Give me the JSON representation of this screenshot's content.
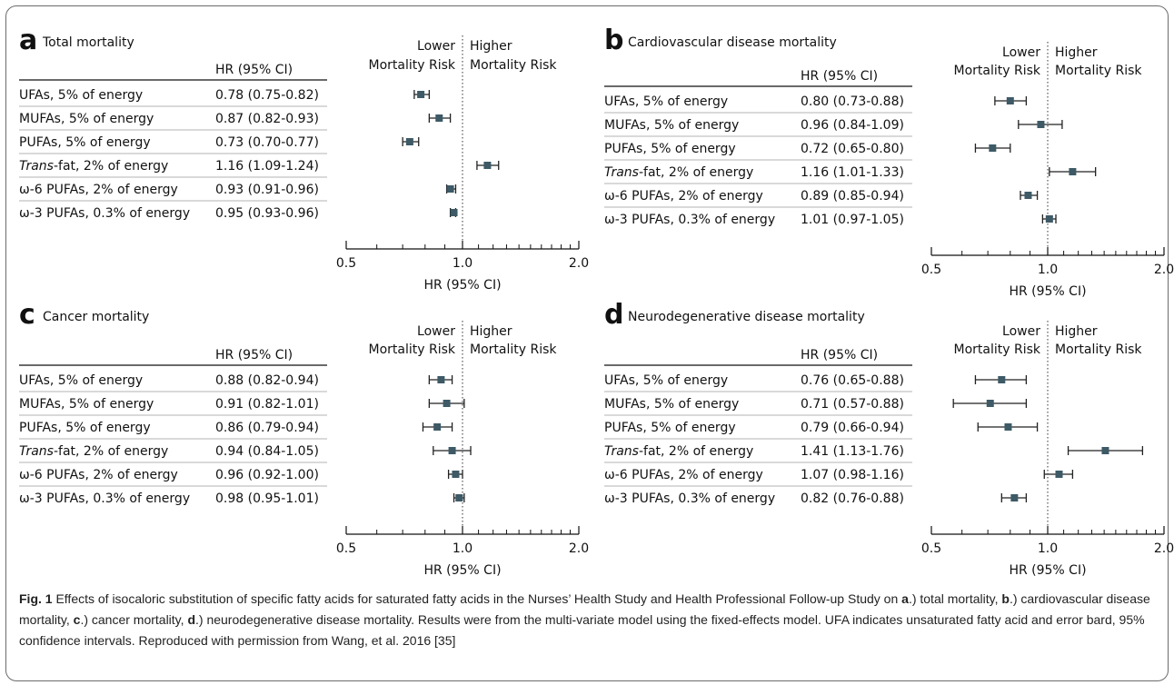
{
  "chart_data": [
    {
      "type": "forest",
      "letter": "a",
      "title": "Total mortality",
      "column_header": "HR (95% CI)",
      "lower_label": [
        "Lower",
        "Mortality Risk"
      ],
      "higher_label": [
        "Higher",
        "Mortality Risk"
      ],
      "xlabel": "HR (95% CI)",
      "x_scale": "log",
      "xlim": [
        0.5,
        2.0
      ],
      "ticks": [
        "0.5",
        "1.0",
        "2.0"
      ],
      "reference_line": 1.0,
      "rows": [
        {
          "label": "UFAs, 5% of energy",
          "hr_text": "0.78 (0.75-0.82)",
          "hr": 0.78,
          "lo": 0.75,
          "hi": 0.82
        },
        {
          "label": "MUFAs, 5% of energy",
          "hr_text": "0.87 (0.82-0.93)",
          "hr": 0.87,
          "lo": 0.82,
          "hi": 0.93
        },
        {
          "label": "PUFAs, 5% of energy",
          "hr_text": "0.73 (0.70-0.77)",
          "hr": 0.73,
          "lo": 0.7,
          "hi": 0.77
        },
        {
          "label_italic": "Trans",
          "label": "-fat, 2% of energy",
          "hr_text": "1.16 (1.09-1.24)",
          "hr": 1.16,
          "lo": 1.09,
          "hi": 1.24
        },
        {
          "label": "ω-6 PUFAs, 2% of energy",
          "hr_text": "0.93 (0.91-0.96)",
          "hr": 0.93,
          "lo": 0.91,
          "hi": 0.96
        },
        {
          "label": "ω-3 PUFAs, 0.3% of energy",
          "hr_text": "0.95 (0.93-0.96)",
          "hr": 0.95,
          "lo": 0.93,
          "hi": 0.96
        }
      ]
    },
    {
      "type": "forest",
      "letter": "b",
      "title": "Cardiovascular disease mortality",
      "column_header": "HR (95% CI)",
      "lower_label": [
        "Lower",
        "Mortality Risk"
      ],
      "higher_label": [
        "Higher",
        "Mortality Risk"
      ],
      "xlabel": "HR (95% CI)",
      "x_scale": "log",
      "xlim": [
        0.5,
        2.0
      ],
      "ticks": [
        "0.5",
        "1.0",
        "2.0"
      ],
      "reference_line": 1.0,
      "rows": [
        {
          "label": "UFAs, 5% of energy",
          "hr_text": "0.80 (0.73-0.88)",
          "hr": 0.8,
          "lo": 0.73,
          "hi": 0.88
        },
        {
          "label": "MUFAs, 5% of energy",
          "hr_text": "0.96 (0.84-1.09)",
          "hr": 0.96,
          "lo": 0.84,
          "hi": 1.09
        },
        {
          "label": "PUFAs, 5% of energy",
          "hr_text": "0.72 (0.65-0.80)",
          "hr": 0.72,
          "lo": 0.65,
          "hi": 0.8
        },
        {
          "label_italic": "Trans",
          "label": "-fat, 2% of energy",
          "hr_text": "1.16 (1.01-1.33)",
          "hr": 1.16,
          "lo": 1.01,
          "hi": 1.33
        },
        {
          "label": "ω-6 PUFAs, 2% of energy",
          "hr_text": "0.89 (0.85-0.94)",
          "hr": 0.89,
          "lo": 0.85,
          "hi": 0.94
        },
        {
          "label": "ω-3 PUFAs, 0.3% of energy",
          "hr_text": "1.01 (0.97-1.05)",
          "hr": 1.01,
          "lo": 0.97,
          "hi": 1.05
        }
      ]
    },
    {
      "type": "forest",
      "letter": "c",
      "title": "Cancer mortality",
      "column_header": "HR (95% CI)",
      "lower_label": [
        "Lower",
        "Mortality Risk"
      ],
      "higher_label": [
        "Higher",
        "Mortality Risk"
      ],
      "xlabel": "HR (95% CI)",
      "x_scale": "log",
      "xlim": [
        0.5,
        2.0
      ],
      "ticks": [
        "0.5",
        "1.0",
        "2.0"
      ],
      "reference_line": 1.0,
      "rows": [
        {
          "label": "UFAs, 5% of energy",
          "hr_text": "0.88 (0.82-0.94)",
          "hr": 0.88,
          "lo": 0.82,
          "hi": 0.94
        },
        {
          "label": "MUFAs, 5% of energy",
          "hr_text": "0.91 (0.82-1.01)",
          "hr": 0.91,
          "lo": 0.82,
          "hi": 1.01
        },
        {
          "label": "PUFAs, 5% of energy",
          "hr_text": "0.86 (0.79-0.94)",
          "hr": 0.86,
          "lo": 0.79,
          "hi": 0.94
        },
        {
          "label_italic": "Trans",
          "label": "-fat, 2% of energy",
          "hr_text": "0.94 (0.84-1.05)",
          "hr": 0.94,
          "lo": 0.84,
          "hi": 1.05
        },
        {
          "label": "ω-6 PUFAs, 2% of energy",
          "hr_text": "0.96 (0.92-1.00)",
          "hr": 0.96,
          "lo": 0.92,
          "hi": 1.0
        },
        {
          "label": "ω-3 PUFAs, 0.3% of energy",
          "hr_text": "0.98 (0.95-1.01)",
          "hr": 0.98,
          "lo": 0.95,
          "hi": 1.01
        }
      ]
    },
    {
      "type": "forest",
      "letter": "d",
      "title": "Neurodegenerative disease mortality",
      "column_header": "HR (95% CI)",
      "lower_label": [
        "Lower",
        "Mortality Risk"
      ],
      "higher_label": [
        "Higher",
        "Mortality Risk"
      ],
      "xlabel": "HR (95% CI)",
      "x_scale": "log",
      "xlim": [
        0.5,
        2.0
      ],
      "ticks": [
        "0.5",
        "1.0",
        "2.0"
      ],
      "reference_line": 1.0,
      "rows": [
        {
          "label": "UFAs, 5% of energy",
          "hr_text": "0.76 (0.65-0.88)",
          "hr": 0.76,
          "lo": 0.65,
          "hi": 0.88
        },
        {
          "label": "MUFAs, 5% of energy",
          "hr_text": "0.71 (0.57-0.88)",
          "hr": 0.71,
          "lo": 0.57,
          "hi": 0.88
        },
        {
          "label": "PUFAs, 5% of energy",
          "hr_text": "0.79 (0.66-0.94)",
          "hr": 0.79,
          "lo": 0.66,
          "hi": 0.94
        },
        {
          "label_italic": "Trans",
          "label": "-fat, 2% of energy",
          "hr_text": "1.41 (1.13-1.76)",
          "hr": 1.41,
          "lo": 1.13,
          "hi": 1.76
        },
        {
          "label": "ω-6 PUFAs, 2% of energy",
          "hr_text": "1.07 (0.98-1.16)",
          "hr": 1.07,
          "lo": 0.98,
          "hi": 1.16
        },
        {
          "label": "ω-3 PUFAs, 0.3% of energy",
          "hr_text": "0.82 (0.76-0.88)",
          "hr": 0.82,
          "lo": 0.76,
          "hi": 0.88
        }
      ]
    }
  ],
  "colors": {
    "marker": "#3d5a66",
    "line": "#222222",
    "rule": "#9a9a9a"
  },
  "caption": {
    "fig_label": "Fig. 1",
    "text_1": " Effects of isocaloric substitution of specific fatty acids for saturated fatty acids in the Nurses’ Health Study and Health Professional Follow-up Study on ",
    "a": "a",
    "text_2": ".) total mortality, ",
    "b": "b",
    "text_3": ".) cardiovascular disease mortality, ",
    "c": "c",
    "text_4": ".) cancer mortality, ",
    "d": "d",
    "text_5": ".) neurodegenerative disease mortality. Results were from the multi-variate model using the fixed-effects model. UFA indicates unsaturated fatty acid and error bard, 95% confidence intervals. Reproduced with permission from Wang, et al. 2016 [35]"
  }
}
